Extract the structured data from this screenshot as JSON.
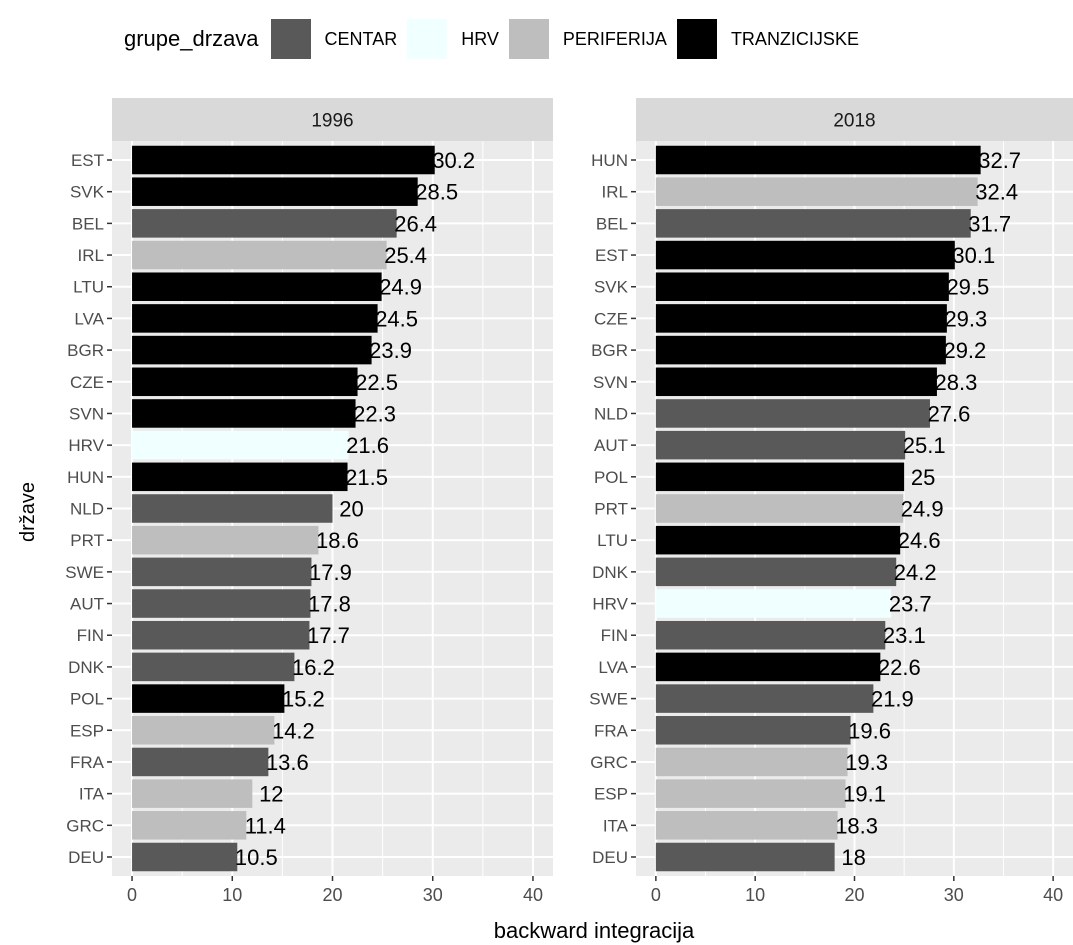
{
  "chart_data": {
    "type": "bar",
    "orientation": "horizontal",
    "xlabel": "backward integracija",
    "ylabel": "države",
    "xlim": [
      0,
      40
    ],
    "xticks": [
      0,
      10,
      20,
      30,
      40
    ],
    "grid": true,
    "legend": {
      "title": "grupe_drzava",
      "position": "top",
      "entries": [
        {
          "name": "CENTAR",
          "color": "#595959"
        },
        {
          "name": "HRV",
          "color": "#f0ffff"
        },
        {
          "name": "PERIFERIJA",
          "color": "#bebebe"
        },
        {
          "name": "TRANZICIJSKE",
          "color": "#000000"
        }
      ]
    },
    "panels": [
      {
        "title": "1996",
        "bars": [
          {
            "country": "EST",
            "group": "TRANZICIJSKE",
            "value": 30.2,
            "label": "30.2"
          },
          {
            "country": "SVK",
            "group": "TRANZICIJSKE",
            "value": 28.5,
            "label": "28.5"
          },
          {
            "country": "BEL",
            "group": "CENTAR",
            "value": 26.4,
            "label": "26.4"
          },
          {
            "country": "IRL",
            "group": "PERIFERIJA",
            "value": 25.4,
            "label": "25.4"
          },
          {
            "country": "LTU",
            "group": "TRANZICIJSKE",
            "value": 24.9,
            "label": "24.9"
          },
          {
            "country": "LVA",
            "group": "TRANZICIJSKE",
            "value": 24.5,
            "label": "24.5"
          },
          {
            "country": "BGR",
            "group": "TRANZICIJSKE",
            "value": 23.9,
            "label": "23.9"
          },
          {
            "country": "CZE",
            "group": "TRANZICIJSKE",
            "value": 22.5,
            "label": "22.5"
          },
          {
            "country": "SVN",
            "group": "TRANZICIJSKE",
            "value": 22.3,
            "label": "22.3"
          },
          {
            "country": "HRV",
            "group": "HRV",
            "value": 21.6,
            "label": "21.6"
          },
          {
            "country": "HUN",
            "group": "TRANZICIJSKE",
            "value": 21.5,
            "label": "21.5"
          },
          {
            "country": "NLD",
            "group": "CENTAR",
            "value": 20,
            "label": "20"
          },
          {
            "country": "PRT",
            "group": "PERIFERIJA",
            "value": 18.6,
            "label": "18.6"
          },
          {
            "country": "SWE",
            "group": "CENTAR",
            "value": 17.9,
            "label": "17.9"
          },
          {
            "country": "AUT",
            "group": "CENTAR",
            "value": 17.8,
            "label": "17.8"
          },
          {
            "country": "FIN",
            "group": "CENTAR",
            "value": 17.7,
            "label": "17.7"
          },
          {
            "country": "DNK",
            "group": "CENTAR",
            "value": 16.2,
            "label": "16.2"
          },
          {
            "country": "POL",
            "group": "TRANZICIJSKE",
            "value": 15.2,
            "label": "15.2"
          },
          {
            "country": "ESP",
            "group": "PERIFERIJA",
            "value": 14.2,
            "label": "14.2"
          },
          {
            "country": "FRA",
            "group": "CENTAR",
            "value": 13.6,
            "label": "13.6"
          },
          {
            "country": "ITA",
            "group": "PERIFERIJA",
            "value": 12,
            "label": "12"
          },
          {
            "country": "GRC",
            "group": "PERIFERIJA",
            "value": 11.4,
            "label": "11.4"
          },
          {
            "country": "DEU",
            "group": "CENTAR",
            "value": 10.5,
            "label": "10.5"
          }
        ]
      },
      {
        "title": "2018",
        "bars": [
          {
            "country": "HUN",
            "group": "TRANZICIJSKE",
            "value": 32.7,
            "label": "32.7"
          },
          {
            "country": "IRL",
            "group": "PERIFERIJA",
            "value": 32.4,
            "label": "32.4"
          },
          {
            "country": "BEL",
            "group": "CENTAR",
            "value": 31.7,
            "label": "31.7"
          },
          {
            "country": "EST",
            "group": "TRANZICIJSKE",
            "value": 30.1,
            "label": "30.1"
          },
          {
            "country": "SVK",
            "group": "TRANZICIJSKE",
            "value": 29.5,
            "label": "29.5"
          },
          {
            "country": "CZE",
            "group": "TRANZICIJSKE",
            "value": 29.3,
            "label": "29.3"
          },
          {
            "country": "BGR",
            "group": "TRANZICIJSKE",
            "value": 29.2,
            "label": "29.2"
          },
          {
            "country": "SVN",
            "group": "TRANZICIJSKE",
            "value": 28.3,
            "label": "28.3"
          },
          {
            "country": "NLD",
            "group": "CENTAR",
            "value": 27.6,
            "label": "27.6"
          },
          {
            "country": "AUT",
            "group": "CENTAR",
            "value": 25.1,
            "label": "25.1"
          },
          {
            "country": "POL",
            "group": "TRANZICIJSKE",
            "value": 25,
            "label": "25"
          },
          {
            "country": "PRT",
            "group": "PERIFERIJA",
            "value": 24.9,
            "label": "24.9"
          },
          {
            "country": "LTU",
            "group": "TRANZICIJSKE",
            "value": 24.6,
            "label": "24.6"
          },
          {
            "country": "DNK",
            "group": "CENTAR",
            "value": 24.2,
            "label": "24.2"
          },
          {
            "country": "HRV",
            "group": "HRV",
            "value": 23.7,
            "label": "23.7"
          },
          {
            "country": "FIN",
            "group": "CENTAR",
            "value": 23.1,
            "label": "23.1"
          },
          {
            "country": "LVA",
            "group": "TRANZICIJSKE",
            "value": 22.6,
            "label": "22.6"
          },
          {
            "country": "SWE",
            "group": "CENTAR",
            "value": 21.9,
            "label": "21.9"
          },
          {
            "country": "FRA",
            "group": "CENTAR",
            "value": 19.6,
            "label": "19.6"
          },
          {
            "country": "GRC",
            "group": "PERIFERIJA",
            "value": 19.3,
            "label": "19.3"
          },
          {
            "country": "ESP",
            "group": "PERIFERIJA",
            "value": 19.1,
            "label": "19.1"
          },
          {
            "country": "ITA",
            "group": "PERIFERIJA",
            "value": 18.3,
            "label": "18.3"
          },
          {
            "country": "DEU",
            "group": "CENTAR",
            "value": 18,
            "label": "18"
          }
        ]
      }
    ]
  }
}
